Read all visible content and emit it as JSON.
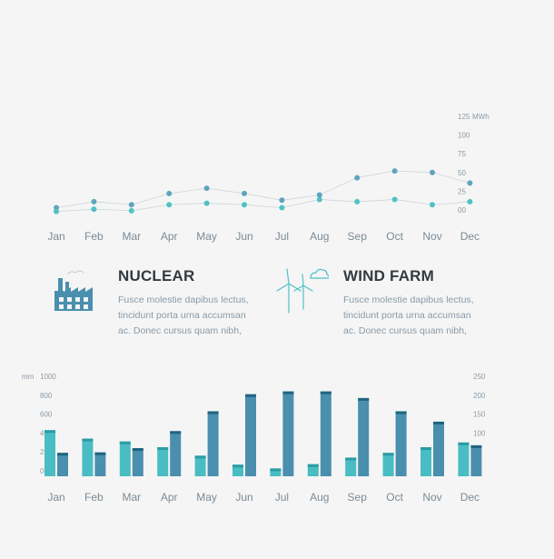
{
  "colors": {
    "nuclear": "#5fa3bd",
    "wind": "#4fc1c4",
    "nuclear_bar": "#4a8fae",
    "nuclear_bar_top": "#1f6580",
    "wind_bar": "#49bdc3",
    "wind_bar_top": "#2a9ca3",
    "line": "#cdd5da"
  },
  "line_chart": {
    "type": "line",
    "unit": "MWh",
    "yticks": [
      "125",
      "100",
      "75",
      "50",
      "25",
      "00"
    ],
    "ylim": [
      0,
      125
    ],
    "categories": [
      "Jan",
      "Feb",
      "Mar",
      "Apr",
      "May",
      "Jun",
      "Jul",
      "Aug",
      "Sep",
      "Oct",
      "Nov",
      "Dec"
    ],
    "series": [
      {
        "values": [
          3,
          11,
          7,
          22,
          29,
          22,
          13,
          20,
          43,
          52,
          50,
          36
        ]
      },
      {
        "values": [
          -2,
          1,
          -1,
          7,
          9,
          7,
          3,
          14,
          11,
          14,
          7,
          11
        ]
      }
    ]
  },
  "info": {
    "nuclear": {
      "title": "NUCLEAR",
      "lines": [
        "Fusce molestie dapibus lectus,",
        "tincidunt porta urna accumsan",
        "ac. Donec cursus quam nibh,"
      ]
    },
    "wind": {
      "title": "WIND FARM",
      "lines": [
        "Fusce molestie dapibus lectus,",
        "tincidunt porta urna accumsan",
        "ac. Donec cursus quam nibh,"
      ]
    }
  },
  "chart_data": {
    "type": "bar",
    "left_unit": "mm",
    "left_ticks": [
      "1000",
      "800",
      "600",
      "400",
      "200",
      "00"
    ],
    "right_ticks": [
      "250",
      "200",
      "150",
      "100",
      "50",
      "00"
    ],
    "categories": [
      "Jan",
      "Feb",
      "Mar",
      "Apr",
      "May",
      "Jun",
      "Jul",
      "Aug",
      "Sep",
      "Oct",
      "Nov",
      "Dec"
    ],
    "ylim_left": [
      0,
      1000
    ],
    "series": [
      {
        "values": [
          430,
          340,
          310,
          250,
          160,
          65,
          25,
          70,
          140,
          190,
          250,
          300
        ]
      },
      {
        "values": [
          190,
          195,
          240,
          420,
          630,
          810,
          840,
          840,
          770,
          630,
          520,
          270
        ]
      }
    ]
  }
}
